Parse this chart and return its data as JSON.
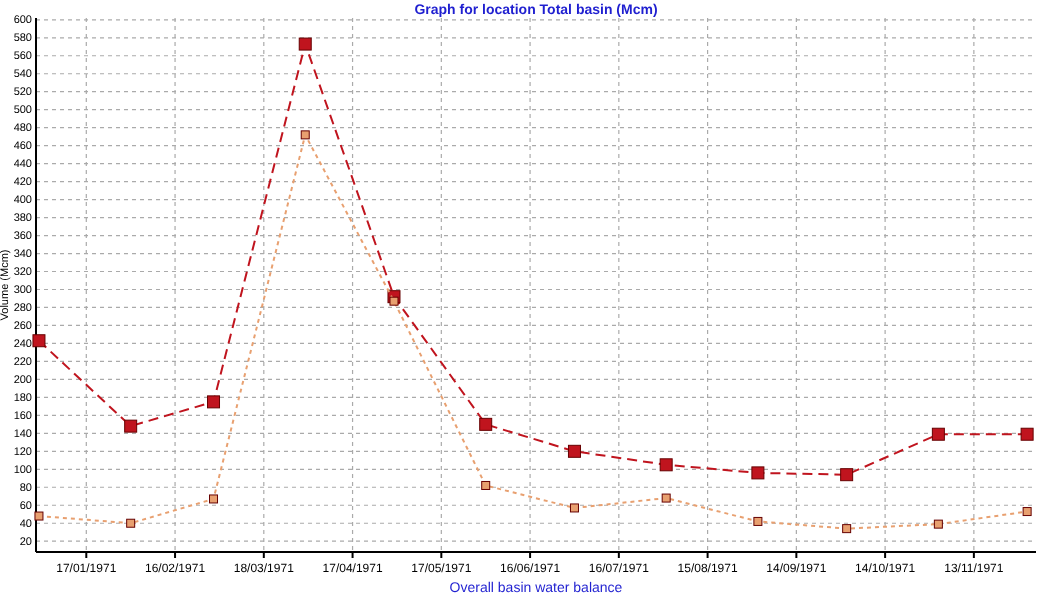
{
  "chart_data": {
    "type": "line",
    "title": "Graph for location Total basin (Mcm)",
    "xlabel": "Overall basin water balance",
    "ylabel": "Volume (Mcm)",
    "x": [
      "1971-01-01",
      "1971-02-01",
      "1971-03-01",
      "1971-04-01",
      "1971-05-01",
      "1971-06-01",
      "1971-07-01",
      "1971-08-01",
      "1971-09-01",
      "1971-10-01",
      "1971-11-01",
      "1971-12-01"
    ],
    "series": [
      {
        "color": "#c0141e",
        "values": [
          243,
          148,
          175,
          573,
          292,
          150,
          120,
          105,
          96,
          94,
          139,
          139
        ],
        "line_style": "dashed"
      },
      {
        "color": "#e8a070",
        "values": [
          48,
          40,
          67,
          472,
          287,
          82,
          57,
          68,
          42,
          34,
          39,
          53
        ],
        "line_style": "dotted"
      }
    ],
    "xlim": [
      "1970-12-31",
      "1971-12-04"
    ],
    "xticks": [
      {
        "value": "1971-01-17",
        "label": "17/01/1971"
      },
      {
        "value": "1971-02-16",
        "label": "16/02/1971"
      },
      {
        "value": "1971-03-18",
        "label": "18/03/1971"
      },
      {
        "value": "1971-04-17",
        "label": "17/04/1971"
      },
      {
        "value": "1971-05-17",
        "label": "17/05/1971"
      },
      {
        "value": "1971-06-16",
        "label": "16/06/1971"
      },
      {
        "value": "1971-07-16",
        "label": "16/07/1971"
      },
      {
        "value": "1971-08-15",
        "label": "15/08/1971"
      },
      {
        "value": "1971-09-14",
        "label": "14/09/1971"
      },
      {
        "value": "1971-10-14",
        "label": "14/10/1971"
      },
      {
        "value": "1971-11-13",
        "label": "13/11/1971"
      }
    ],
    "ylim": [
      8,
      602
    ],
    "yticks": [
      20,
      40,
      60,
      80,
      100,
      120,
      140,
      160,
      180,
      200,
      220,
      240,
      260,
      280,
      300,
      320,
      340,
      360,
      380,
      400,
      420,
      440,
      460,
      480,
      500,
      520,
      540,
      560,
      580,
      600
    ],
    "grid": true,
    "marker": "square"
  }
}
